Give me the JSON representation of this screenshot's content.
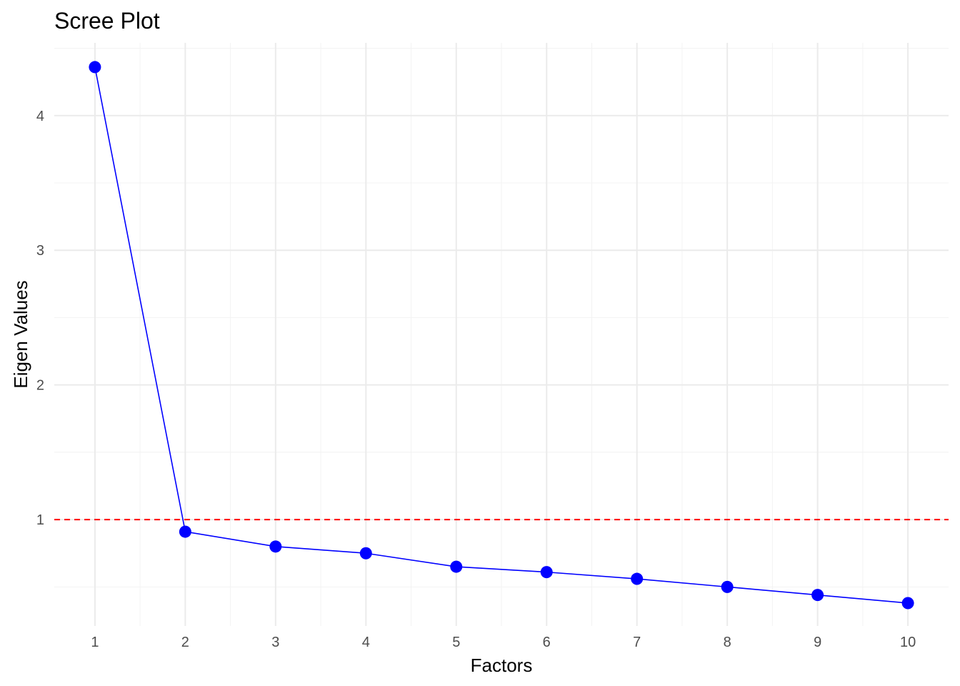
{
  "chart_data": {
    "type": "line",
    "title": "Scree Plot",
    "xlabel": "Factors",
    "ylabel": "Eigen Values",
    "x": [
      1,
      2,
      3,
      4,
      5,
      6,
      7,
      8,
      9,
      10
    ],
    "series": [
      {
        "values": [
          4.36,
          0.91,
          0.8,
          0.75,
          0.65,
          0.61,
          0.56,
          0.5,
          0.44,
          0.38
        ],
        "color": "#0000ff",
        "markers": true
      }
    ],
    "x_ticks": [
      "1",
      "2",
      "3",
      "4",
      "5",
      "6",
      "7",
      "8",
      "9",
      "10"
    ],
    "y_ticks": [
      "1",
      "2",
      "3",
      "4"
    ],
    "xlim": [
      0.55,
      10.45
    ],
    "ylim": [
      0.21,
      4.54
    ],
    "reference_line": {
      "y": 1,
      "color": "#ff0000",
      "style": "dashed"
    },
    "grid": true,
    "legend": "none"
  }
}
